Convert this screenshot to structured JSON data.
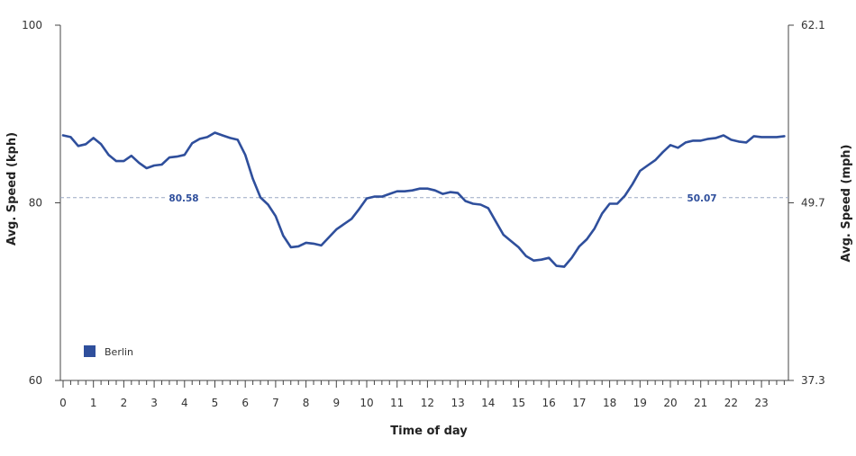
{
  "chart_data": {
    "type": "line",
    "xlabel": "Time of day",
    "ylabel_left": "Avg. Speed (kph)",
    "ylabel_right": "Avg. Speed (mph)",
    "x_ticks": [
      "0",
      "1",
      "2",
      "3",
      "4",
      "5",
      "6",
      "7",
      "8",
      "9",
      "10",
      "11",
      "12",
      "13",
      "14",
      "15",
      "16",
      "17",
      "18",
      "19",
      "20",
      "21",
      "22",
      "23"
    ],
    "xlim": [
      0,
      23.75
    ],
    "ylim_left": [
      60,
      100
    ],
    "y_ticks_left": [
      "60",
      "80",
      "100"
    ],
    "ylim_right": [
      37.3,
      62.1
    ],
    "y_ticks_right": [
      "37.3",
      "49.7",
      "62.1"
    ],
    "reference_line": {
      "value": 80.58,
      "label_left": "80.58",
      "label_right": "50.07"
    },
    "legend": {
      "position": "bottom-left"
    },
    "colors": {
      "line": "#2f4f9c",
      "reference": "#9aa9c4",
      "axis": "#444444"
    },
    "series": [
      {
        "name": "Berlin",
        "x": [
          0,
          0.25,
          0.5,
          0.75,
          1,
          1.25,
          1.5,
          1.75,
          2,
          2.25,
          2.5,
          2.75,
          3,
          3.25,
          3.5,
          3.75,
          4,
          4.25,
          4.5,
          4.75,
          5,
          5.25,
          5.5,
          5.75,
          6,
          6.25,
          6.5,
          6.75,
          7,
          7.25,
          7.5,
          7.75,
          8,
          8.25,
          8.5,
          8.75,
          9,
          9.25,
          9.5,
          9.75,
          10,
          10.25,
          10.5,
          10.75,
          11,
          11.25,
          11.5,
          11.75,
          12,
          12.25,
          12.5,
          12.75,
          13,
          13.25,
          13.5,
          13.75,
          14,
          14.25,
          14.5,
          14.75,
          15,
          15.25,
          15.5,
          15.75,
          16,
          16.25,
          16.5,
          16.75,
          17,
          17.25,
          17.5,
          17.75,
          18,
          18.25,
          18.5,
          18.75,
          19,
          19.25,
          19.5,
          19.75,
          20,
          20.25,
          20.5,
          20.75,
          21,
          21.25,
          21.5,
          21.75,
          22,
          22.25,
          22.5,
          22.75,
          23,
          23.25,
          23.5,
          23.75
        ],
        "values": [
          87.6,
          87.4,
          86.4,
          86.6,
          87.3,
          86.6,
          85.4,
          84.7,
          84.7,
          85.3,
          84.5,
          83.9,
          84.2,
          84.3,
          85.1,
          85.2,
          85.4,
          86.7,
          87.2,
          87.4,
          87.9,
          87.6,
          87.3,
          87.1,
          85.4,
          82.7,
          80.6,
          79.8,
          78.5,
          76.3,
          75.0,
          75.1,
          75.5,
          75.4,
          75.2,
          76.1,
          77.0,
          77.6,
          78.2,
          79.3,
          80.5,
          80.7,
          80.7,
          81.0,
          81.3,
          81.3,
          81.4,
          81.6,
          81.6,
          81.4,
          81.0,
          81.2,
          81.1,
          80.2,
          79.9,
          79.8,
          79.4,
          77.9,
          76.4,
          75.7,
          75.0,
          74.0,
          73.5,
          73.6,
          73.8,
          72.9,
          72.8,
          73.8,
          75.1,
          75.9,
          77.1,
          78.8,
          79.9,
          79.9,
          80.8,
          82.1,
          83.6,
          84.2,
          84.8,
          85.7,
          86.5,
          86.2,
          86.8,
          87.0,
          87.0,
          87.2,
          87.3,
          87.6,
          87.1,
          86.9,
          86.8,
          87.5,
          87.4,
          87.4,
          87.4,
          87.5
        ]
      }
    ]
  }
}
